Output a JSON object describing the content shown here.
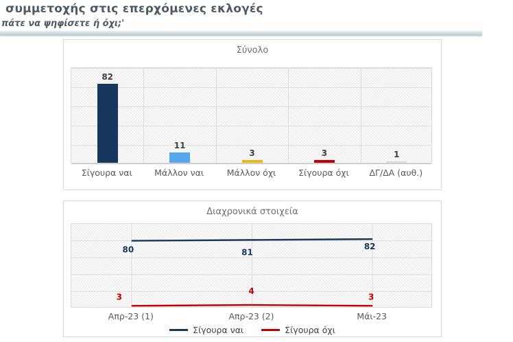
{
  "header": {
    "title": "συμμετοχής στις επερχόμενες εκλογές",
    "subtitle": "πάτε να ψηφίσετε ή όχι;'"
  },
  "colors": {
    "header_text": "#4d5b66",
    "divider_teal": "#c3d5da",
    "navy": "#17375E",
    "light_blue": "#57A7EF",
    "amber": "#F2B40E",
    "red": "#C00000",
    "gray_bar": "#D9D9D9",
    "gridline": "#dedede",
    "label_gray": "#595959"
  },
  "chart_data": [
    {
      "type": "bar",
      "title": "Σύνολο",
      "categories": [
        "Σίγουρα ναι",
        "Μάλλον ναι",
        "Μάλλον όχι",
        "Σίγουρα όχι",
        "ΔΓ/ΔΑ (αυθ.)"
      ],
      "values": [
        82,
        11,
        3,
        3,
        1
      ],
      "bar_colors": [
        "#17375E",
        "#57A7EF",
        "#F2B40E",
        "#C00000",
        "#D9D9D9"
      ],
      "data_labels": [
        82,
        11,
        3,
        3,
        1
      ],
      "ylim": [
        0,
        100
      ],
      "grid_step": 20,
      "grid": "on",
      "legend_position": "none"
    },
    {
      "type": "line",
      "title": "Διαχρονικά στοιχεία",
      "categories": [
        "Απρ-23 (1)",
        "Απρ-23 (2)",
        "Μάι-23"
      ],
      "series": [
        {
          "name": "Σίγουρα ναι",
          "values": [
            80,
            81,
            82
          ],
          "color": "#17375E"
        },
        {
          "name": "Σίγουρα όχι",
          "values": [
            3,
            4,
            3
          ],
          "color": "#C00000"
        }
      ],
      "ylim": [
        0,
        100
      ],
      "grid_step": 20,
      "grid": "on",
      "legend_position": "bottom"
    }
  ]
}
